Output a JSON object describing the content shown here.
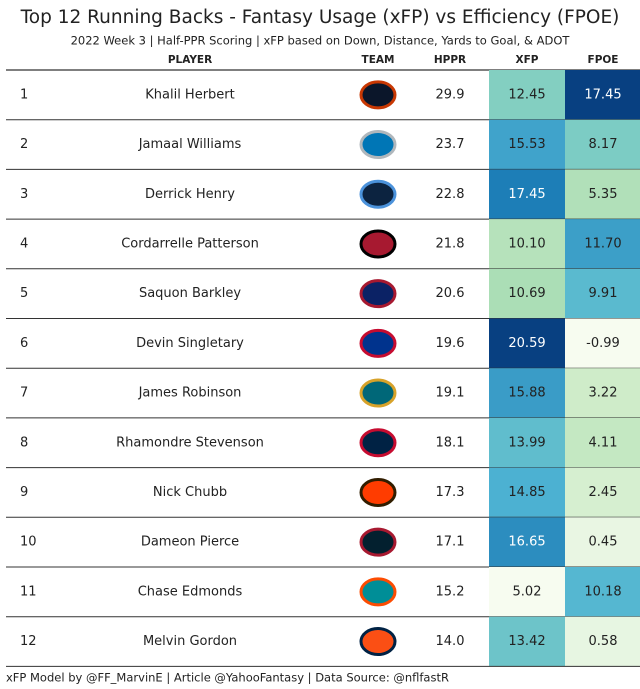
{
  "header": {
    "title": "Top 12 Running Backs - Fantasy Usage (xFP) vs Efficiency (FPOE)",
    "subtitle": "2022 Week 3 | Half-PPR Scoring | xFP based on Down, Distance, Yards to Goal, & ADOT"
  },
  "table": {
    "columns": [
      "PLAYER",
      "TEAM",
      "HPPR",
      "XFP",
      "FPOE"
    ],
    "rows": [
      [
        "1",
        "Khalil Herbert",
        "29.9",
        "12.45",
        "17.45"
      ],
      [
        "2",
        "Jamaal Williams",
        "23.7",
        "15.53",
        "8.17"
      ],
      [
        "3",
        "Derrick Henry",
        "22.8",
        "17.45",
        "5.35"
      ],
      [
        "4",
        "Cordarrelle Patterson",
        "21.8",
        "10.10",
        "11.70"
      ],
      [
        "5",
        "Saquon Barkley",
        "20.6",
        "10.69",
        "9.91"
      ],
      [
        "6",
        "Devin Singletary",
        "19.6",
        "20.59",
        "-0.99"
      ],
      [
        "7",
        "James Robinson",
        "19.1",
        "15.88",
        "3.22"
      ],
      [
        "8",
        "Rhamondre Stevenson",
        "18.1",
        "13.99",
        "4.11"
      ],
      [
        "9",
        "Nick Chubb",
        "17.3",
        "14.85",
        "2.45"
      ],
      [
        "10",
        "Dameon Pierce",
        "17.1",
        "16.65",
        "0.45"
      ],
      [
        "11",
        "Chase Edmonds",
        "15.2",
        "5.02",
        "10.18"
      ],
      [
        "12",
        "Melvin Gordon",
        "14.0",
        "13.42",
        "0.58"
      ]
    ]
  },
  "footer": "xFP Model by @FF_MarvinE | Article @YahooFantasy | Data Source: @nflfastR"
}
